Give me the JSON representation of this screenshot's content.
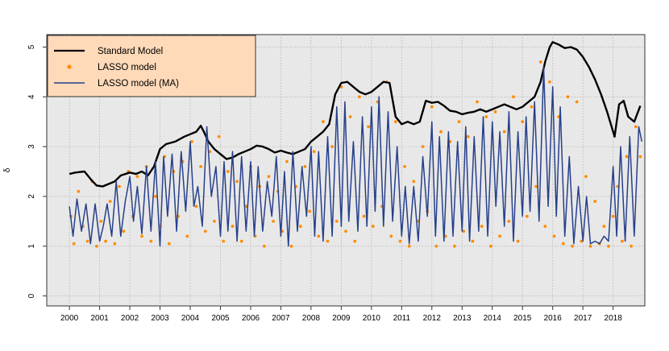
{
  "chart_data": {
    "type": "line",
    "title": "",
    "xlabel": "",
    "ylabel": "δ",
    "xlim": [
      1999.25,
      2019.05
    ],
    "ylim": [
      -0.2,
      5.25
    ],
    "x_ticks": [
      2000,
      2001,
      2002,
      2003,
      2004,
      2005,
      2006,
      2007,
      2008,
      2009,
      2010,
      2011,
      2012,
      2013,
      2014,
      2015,
      2016,
      2017,
      2018
    ],
    "x_tick_labels": [
      "2000",
      "2001",
      "2002",
      "2003",
      "2004",
      "2005",
      "2006",
      "2007",
      "2008",
      "2009",
      "2010",
      "2011",
      "2012",
      "2013",
      "2014",
      "2015",
      "2016",
      "2017",
      "2018"
    ],
    "y_ticks": [
      0,
      1,
      2,
      3,
      4,
      5
    ],
    "y_tick_labels": [
      "0",
      "1",
      "2",
      "3",
      "4",
      "5"
    ],
    "grid": true,
    "legend": {
      "position": "top-left",
      "entries": [
        {
          "label": "Standard Model",
          "symbol": "line",
          "color": "#000000"
        },
        {
          "label": "LASSO model",
          "symbol": "point",
          "color": "#ff8c00"
        },
        {
          "label": "LASSO model (MA)",
          "symbol": "line",
          "color": "#27408b"
        }
      ]
    },
    "series": [
      {
        "name": "Standard Model",
        "kind": "line",
        "color": "#000000",
        "x": [
          2000.0,
          2000.2,
          2000.5,
          2000.7,
          2000.9,
          2001.1,
          2001.3,
          2001.5,
          2001.7,
          2002.0,
          2002.2,
          2002.4,
          2002.6,
          2002.8,
          2003.0,
          2003.2,
          2003.5,
          2003.8,
          2004.0,
          2004.2,
          2004.35,
          2004.45,
          2004.6,
          2004.8,
          2005.0,
          2005.2,
          2005.4,
          2005.6,
          2005.8,
          2006.0,
          2006.2,
          2006.4,
          2006.6,
          2006.8,
          2007.0,
          2007.2,
          2007.4,
          2007.6,
          2007.8,
          2008.0,
          2008.2,
          2008.4,
          2008.6,
          2008.8,
          2009.0,
          2009.2,
          2009.4,
          2009.6,
          2009.8,
          2010.0,
          2010.2,
          2010.4,
          2010.6,
          2010.8,
          2011.0,
          2011.2,
          2011.4,
          2011.6,
          2011.8,
          2012.0,
          2012.2,
          2012.4,
          2012.6,
          2012.8,
          2013.0,
          2013.2,
          2013.4,
          2013.6,
          2013.8,
          2014.0,
          2014.2,
          2014.4,
          2014.6,
          2014.8,
          2015.0,
          2015.2,
          2015.4,
          2015.6,
          2015.75,
          2015.9,
          2016.0,
          2016.2,
          2016.4,
          2016.6,
          2016.8,
          2017.0,
          2017.2,
          2017.4,
          2017.6,
          2017.8,
          2017.95,
          2018.05,
          2018.2,
          2018.35,
          2018.5,
          2018.7,
          2018.9
        ],
        "values": [
          2.45,
          2.48,
          2.5,
          2.35,
          2.22,
          2.2,
          2.25,
          2.3,
          2.42,
          2.48,
          2.45,
          2.5,
          2.42,
          2.6,
          2.95,
          3.05,
          3.1,
          3.2,
          3.25,
          3.3,
          3.42,
          3.3,
          3.1,
          2.95,
          2.85,
          2.75,
          2.78,
          2.85,
          2.9,
          2.95,
          3.02,
          3.0,
          2.95,
          2.88,
          2.92,
          2.88,
          2.85,
          2.9,
          2.95,
          3.1,
          3.2,
          3.3,
          3.45,
          4.05,
          4.28,
          4.3,
          4.2,
          4.1,
          4.05,
          4.1,
          4.2,
          4.3,
          4.28,
          3.6,
          3.45,
          3.5,
          3.45,
          3.5,
          3.92,
          3.88,
          3.9,
          3.82,
          3.72,
          3.7,
          3.65,
          3.68,
          3.7,
          3.75,
          3.7,
          3.75,
          3.8,
          3.85,
          3.8,
          3.75,
          3.8,
          3.9,
          4.0,
          4.3,
          4.7,
          5.0,
          5.1,
          5.05,
          4.98,
          5.0,
          4.95,
          4.8,
          4.6,
          4.35,
          4.05,
          3.7,
          3.4,
          3.2,
          3.85,
          3.92,
          3.6,
          3.5,
          3.82
        ]
      },
      {
        "name": "LASSO model (MA)",
        "kind": "line",
        "color": "#27408b",
        "x": [
          2000.0,
          2000.12,
          2000.25,
          2000.4,
          2000.55,
          2000.7,
          2000.85,
          2001.0,
          2001.12,
          2001.25,
          2001.4,
          2001.55,
          2001.7,
          2001.85,
          2002.0,
          2002.12,
          2002.25,
          2002.4,
          2002.55,
          2002.7,
          2002.85,
          2003.0,
          2003.12,
          2003.25,
          2003.4,
          2003.55,
          2003.7,
          2003.85,
          2004.0,
          2004.12,
          2004.25,
          2004.4,
          2004.55,
          2004.7,
          2004.85,
          2005.0,
          2005.12,
          2005.25,
          2005.4,
          2005.55,
          2005.7,
          2005.85,
          2006.0,
          2006.12,
          2006.25,
          2006.4,
          2006.55,
          2006.7,
          2006.85,
          2007.0,
          2007.12,
          2007.25,
          2007.4,
          2007.55,
          2007.7,
          2007.85,
          2008.0,
          2008.12,
          2008.25,
          2008.4,
          2008.55,
          2008.7,
          2008.85,
          2009.0,
          2009.12,
          2009.25,
          2009.4,
          2009.55,
          2009.7,
          2009.85,
          2010.0,
          2010.12,
          2010.25,
          2010.4,
          2010.55,
          2010.7,
          2010.85,
          2011.0,
          2011.12,
          2011.25,
          2011.4,
          2011.55,
          2011.7,
          2011.85,
          2012.0,
          2012.12,
          2012.25,
          2012.4,
          2012.55,
          2012.7,
          2012.85,
          2013.0,
          2013.12,
          2013.25,
          2013.4,
          2013.55,
          2013.7,
          2013.85,
          2014.0,
          2014.12,
          2014.25,
          2014.4,
          2014.55,
          2014.7,
          2014.85,
          2015.0,
          2015.12,
          2015.25,
          2015.4,
          2015.55,
          2015.7,
          2015.85,
          2016.0,
          2016.12,
          2016.25,
          2016.4,
          2016.55,
          2016.7,
          2016.85,
          2017.0,
          2017.12,
          2017.25,
          2017.4,
          2017.55,
          2017.7,
          2017.85,
          2018.0,
          2018.12,
          2018.25,
          2018.4,
          2018.55,
          2018.7,
          2018.85,
          2018.95
        ],
        "values": [
          1.8,
          1.2,
          1.95,
          1.3,
          1.85,
          1.05,
          1.85,
          1.1,
          1.4,
          1.85,
          1.2,
          2.3,
          1.2,
          1.9,
          2.4,
          1.5,
          2.2,
          1.25,
          2.6,
          1.3,
          2.7,
          1.0,
          2.8,
          1.6,
          2.85,
          1.3,
          2.9,
          1.7,
          3.1,
          1.8,
          2.2,
          1.4,
          3.4,
          2.0,
          2.6,
          1.2,
          2.7,
          1.3,
          2.9,
          1.1,
          2.8,
          1.3,
          2.7,
          1.2,
          2.6,
          1.3,
          2.3,
          1.6,
          2.8,
          1.2,
          2.5,
          1.0,
          2.9,
          1.3,
          2.6,
          1.6,
          3.0,
          1.2,
          2.9,
          1.1,
          3.2,
          1.2,
          3.8,
          1.4,
          3.9,
          1.5,
          3.1,
          1.3,
          3.6,
          1.4,
          3.8,
          1.7,
          4.0,
          1.4,
          3.7,
          1.5,
          3.0,
          1.2,
          2.2,
          1.05,
          2.2,
          1.1,
          2.8,
          1.6,
          3.5,
          1.2,
          3.2,
          1.1,
          3.3,
          1.2,
          3.1,
          1.3,
          3.4,
          1.1,
          3.2,
          1.3,
          3.6,
          1.2,
          3.5,
          1.8,
          3.3,
          1.4,
          3.7,
          1.1,
          3.3,
          1.6,
          3.6,
          1.7,
          3.9,
          1.5,
          4.6,
          1.8,
          4.2,
          1.6,
          3.8,
          1.2,
          2.8,
          1.05,
          2.2,
          1.1,
          2.0,
          1.05,
          1.1,
          1.05,
          1.2,
          1.1,
          2.6,
          1.2,
          3.0,
          1.1,
          3.2,
          1.2,
          3.4,
          3.1
        ]
      },
      {
        "name": "LASSO model",
        "kind": "scatter",
        "color": "#ff8c00",
        "x": [
          2000.05,
          2000.15,
          2000.3,
          2000.45,
          2000.6,
          2000.75,
          2000.9,
          2001.05,
          2001.2,
          2001.35,
          2001.5,
          2001.65,
          2001.8,
          2001.95,
          2002.1,
          2002.25,
          2002.4,
          2002.55,
          2002.7,
          2002.85,
          2003.0,
          2003.15,
          2003.3,
          2003.45,
          2003.6,
          2003.75,
          2003.9,
          2004.05,
          2004.2,
          2004.35,
          2004.5,
          2004.65,
          2004.8,
          2004.95,
          2005.1,
          2005.25,
          2005.4,
          2005.55,
          2005.7,
          2005.85,
          2006.0,
          2006.15,
          2006.3,
          2006.45,
          2006.6,
          2006.75,
          2006.9,
          2007.05,
          2007.2,
          2007.35,
          2007.5,
          2007.65,
          2007.8,
          2007.95,
          2008.1,
          2008.25,
          2008.4,
          2008.55,
          2008.7,
          2008.85,
          2009.0,
          2009.15,
          2009.3,
          2009.45,
          2009.6,
          2009.75,
          2009.9,
          2010.05,
          2010.2,
          2010.35,
          2010.5,
          2010.65,
          2010.8,
          2010.95,
          2011.1,
          2011.25,
          2011.4,
          2011.55,
          2011.7,
          2011.85,
          2012.0,
          2012.15,
          2012.3,
          2012.45,
          2012.6,
          2012.75,
          2012.9,
          2013.05,
          2013.2,
          2013.35,
          2013.5,
          2013.65,
          2013.8,
          2013.95,
          2014.1,
          2014.25,
          2014.4,
          2014.55,
          2014.7,
          2014.85,
          2015.0,
          2015.15,
          2015.3,
          2015.45,
          2015.6,
          2015.75,
          2015.9,
          2016.05,
          2016.2,
          2016.35,
          2016.5,
          2016.65,
          2016.8,
          2016.95,
          2017.1,
          2017.25,
          2017.4,
          2017.55,
          2017.7,
          2017.85,
          2018.0,
          2018.15,
          2018.3,
          2018.45,
          2018.6,
          2018.75,
          2018.9
        ],
        "values": [
          1.6,
          1.05,
          2.1,
          1.4,
          1.1,
          2.3,
          1.0,
          1.5,
          1.1,
          1.9,
          1.05,
          2.2,
          1.3,
          2.5,
          1.6,
          2.4,
          1.2,
          2.6,
          1.1,
          2.0,
          1.4,
          2.8,
          1.05,
          2.5,
          1.6,
          2.7,
          1.2,
          3.1,
          1.8,
          2.6,
          1.3,
          2.9,
          1.5,
          3.2,
          1.1,
          2.5,
          1.4,
          2.3,
          1.1,
          1.8,
          2.6,
          1.2,
          2.2,
          1.0,
          2.4,
          1.5,
          2.1,
          1.3,
          2.7,
          1.0,
          2.2,
          1.4,
          2.6,
          1.7,
          2.9,
          1.2,
          3.5,
          1.1,
          3.0,
          1.5,
          4.2,
          1.3,
          3.6,
          1.1,
          4.0,
          1.6,
          3.4,
          1.4,
          3.9,
          1.8,
          4.3,
          1.2,
          3.5,
          1.1,
          2.6,
          1.0,
          2.3,
          1.5,
          3.0,
          1.7,
          3.8,
          1.0,
          3.3,
          1.2,
          3.1,
          1.0,
          3.5,
          1.3,
          3.2,
          1.1,
          3.9,
          1.4,
          3.6,
          1.0,
          3.7,
          1.2,
          3.3,
          1.5,
          4.0,
          1.1,
          3.5,
          1.6,
          3.8,
          2.2,
          4.7,
          1.4,
          4.3,
          1.2,
          3.6,
          1.05,
          4.0,
          1.0,
          3.9,
          1.1,
          2.4,
          1.0,
          1.9,
          1.05,
          1.4,
          1.0,
          1.6,
          2.2,
          1.1,
          2.8,
          1.0,
          3.4,
          2.8
        ]
      }
    ]
  }
}
